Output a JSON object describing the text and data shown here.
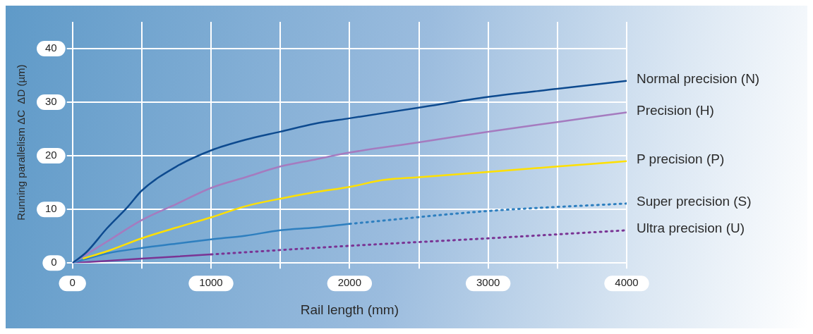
{
  "chart_data": {
    "type": "line",
    "xlabel": "Rail length (mm)",
    "ylabel": "Running parallelism ΔC  ΔD (µm)",
    "xlim": [
      0,
      4000
    ],
    "xticks": [
      0,
      {
        "value": 500,
        "label": null
      },
      1000,
      {
        "value": 1500,
        "label": null
      },
      2000,
      {
        "value": 2500,
        "label": null
      },
      3000,
      {
        "value": 3500,
        "label": null
      },
      4000
    ],
    "ylim": [
      0,
      45
    ],
    "yticks": [
      0,
      10,
      20,
      30,
      40
    ],
    "grid": true,
    "legend": false,
    "marker": "none",
    "series": [
      {
        "name": "Normal precision (N)",
        "color": "#0d4a8f",
        "line_style": "solid",
        "x": [
          0,
          100,
          250,
          400,
          500,
          750,
          1000,
          1250,
          1500,
          1750,
          2000,
          2500,
          3000,
          3500,
          4000
        ],
        "values": [
          0,
          2,
          6.5,
          10.5,
          13.5,
          18,
          21,
          23,
          24.5,
          26,
          27,
          29,
          31,
          32.5,
          34
        ]
      },
      {
        "name": "Precision (H)",
        "color": "#a57bbf",
        "line_style": "solid",
        "x": [
          0,
          250,
          500,
          750,
          1000,
          1250,
          1500,
          1750,
          2000,
          2500,
          3000,
          3500,
          4000
        ],
        "values": [
          0,
          4,
          8,
          11,
          14,
          16,
          18,
          19.3,
          20.6,
          22.5,
          24.5,
          26.3,
          28.1
        ]
      },
      {
        "name": "P precision (P)",
        "color": "#ffe000",
        "line_style": "solid",
        "x": [
          75,
          250,
          500,
          750,
          1000,
          1250,
          1500,
          1750,
          2000,
          2250,
          2500,
          3000,
          3500,
          4000
        ],
        "values": [
          0.8,
          2.2,
          4.6,
          6.6,
          8.5,
          10.6,
          12,
          13.2,
          14.2,
          15.5,
          16,
          17,
          18,
          19
        ]
      },
      {
        "color": "#2e7fbf",
        "line_style": "solid",
        "x": [
          0,
          250,
          500,
          750,
          1000,
          1250,
          1500,
          1750,
          2000
        ],
        "values": [
          0,
          1.8,
          2.8,
          3.6,
          4.4,
          5.1,
          6.1,
          6.6,
          7.3
        ]
      },
      {
        "name": "Super precision (S)",
        "color": "#2e7fbf",
        "line_style": "dotted",
        "x": [
          2000,
          3000,
          4000
        ],
        "values": [
          7.3,
          9.7,
          11.1
        ]
      },
      {
        "color": "#7a3494",
        "line_style": "solid",
        "x": [
          0,
          500,
          1000
        ],
        "values": [
          0,
          0.8,
          1.6
        ]
      },
      {
        "name": "Ultra precision (U)",
        "color": "#7a3494",
        "line_style": "dotted",
        "x": [
          1000,
          2000,
          3000,
          4000
        ],
        "values": [
          1.6,
          3.2,
          4.6,
          6.1
        ]
      }
    ]
  }
}
